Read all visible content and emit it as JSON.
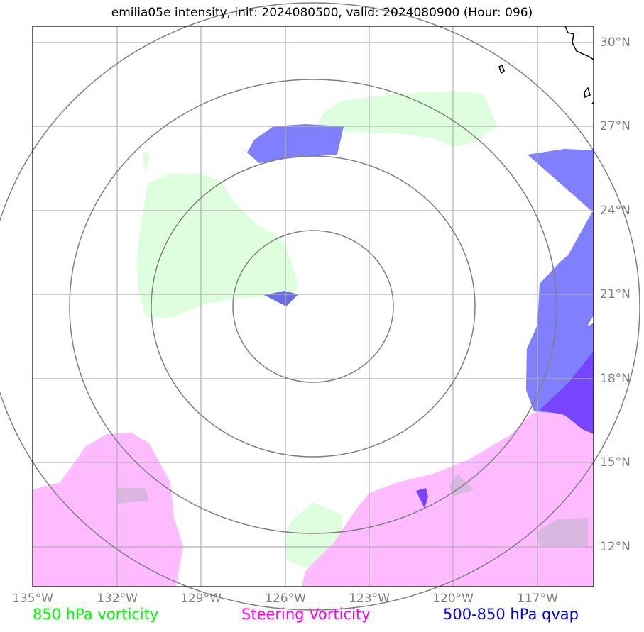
{
  "title": "emilia05e intensity, init: 2024080500, valid: 2024080900 (Hour: 096)",
  "axes": {
    "lon_labels": [
      "135°W",
      "132°W",
      "129°W",
      "126°W",
      "123°W",
      "120°W",
      "117°W"
    ],
    "lat_labels": [
      "30°N",
      "27°N",
      "24°N",
      "21°N",
      "18°N",
      "15°N",
      "12°N"
    ]
  },
  "legend": [
    {
      "label": "850 hPa vorticity",
      "color": "#00ff00"
    },
    {
      "label": "Steering Vorticity",
      "color": "#ff00ff"
    },
    {
      "label": "500-850 hPa qvap",
      "color": "#0000ff"
    }
  ],
  "colors": {
    "vorticity_fill": "#ddffdd",
    "steering_fill": "#ffbbff",
    "qvap_fill": "#8080ff",
    "qvap_dark": "#7744ff",
    "range_ring": "#808080",
    "grid": "#b0b0b0",
    "coastline": "#000000"
  },
  "storm_center": {
    "lon": "125°W",
    "lat": "21°N"
  }
}
